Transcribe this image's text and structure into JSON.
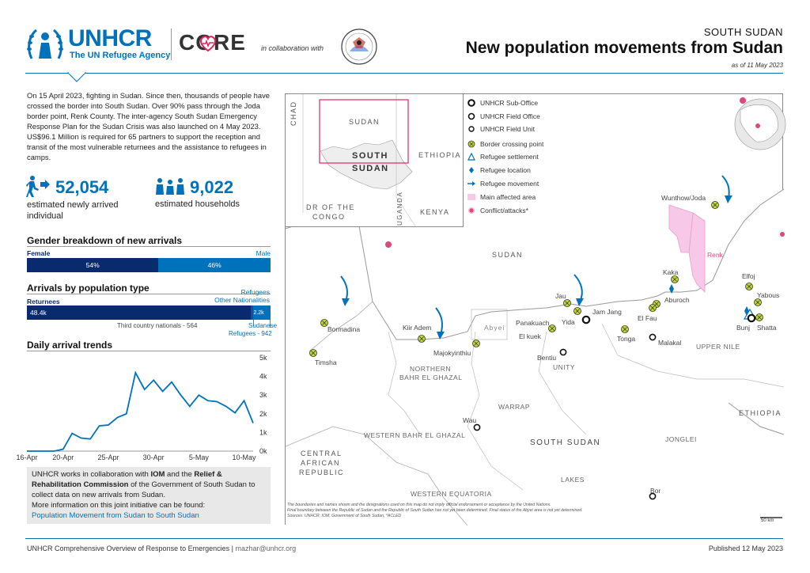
{
  "header": {
    "org_name": "UNHCR",
    "org_tagline": "The UN Refugee Agency",
    "core_label": "CORE",
    "collab_text": "in collaboration with",
    "country": "SOUTH SUDAN",
    "title": "New population movements from Sudan",
    "date": "as of 11 May 2023"
  },
  "intro": "On 15 April 2023, fighting in Sudan. Since then, thousands of people have crossed the border into South Sudan. Over 90% pass through the Joda border point, Renk County. The inter-agency South Sudan Emergency Response Plan for the Sudan Crisis was also launched on 4 May 2023. US$96.1 Million is required for 65 partners to support the reception and transit of the most vulnerable returnees and the assistance to refugees in camps.",
  "stats": {
    "arrivals_value": "52,054",
    "arrivals_label": "estimated newly arrived individual",
    "households_value": "9,022",
    "households_label": "estimated households"
  },
  "gender": {
    "title": "Gender breakdown of new arrivals",
    "female_label": "Female",
    "male_label": "Male",
    "female_pct": "54%",
    "male_pct": "46%",
    "female_share": 0.54
  },
  "pop_type": {
    "title": "Arrivals by population type",
    "returnees_label": "Returnees",
    "refugees_label": "Refugees",
    "other_nat_label": "Other Nationalities",
    "returnees_value": "48.4k",
    "refugees_value": "2.2k",
    "third_country_label": "Third country nationals - 564",
    "sudanese_label": "Sudanese",
    "sudanese_value_label": "Refugees - 942",
    "returnees_share": 0.93,
    "refugees_share": 0.042
  },
  "trends": {
    "title": "Daily arrival trends"
  },
  "chart_data": {
    "type": "line",
    "title": "Daily arrival trends",
    "x": [
      "16-Apr",
      "17-Apr",
      "18-Apr",
      "19-Apr",
      "20-Apr",
      "21-Apr",
      "22-Apr",
      "23-Apr",
      "24-Apr",
      "25-Apr",
      "26-Apr",
      "27-Apr",
      "28-Apr",
      "29-Apr",
      "30-Apr",
      "1-May",
      "2-May",
      "3-May",
      "4-May",
      "5-May",
      "6-May",
      "7-May",
      "8-May",
      "9-May",
      "10-May",
      "11-May"
    ],
    "y": [
      0,
      0,
      0,
      0,
      100,
      950,
      700,
      650,
      1350,
      1400,
      1800,
      2000,
      4200,
      3300,
      3800,
      3200,
      3700,
      3000,
      2400,
      3000,
      2700,
      2650,
      2400,
      2050,
      2700,
      1500
    ],
    "xticks": [
      "16-Apr",
      "20-Apr",
      "25-Apr",
      "30-Apr",
      "5-May",
      "10-May"
    ],
    "yticks": [
      "0k",
      "1k",
      "2k",
      "3k",
      "4k",
      "5k"
    ],
    "ylim": [
      0,
      5000
    ],
    "line_color": "#0072bc"
  },
  "collab_box": {
    "text1": "UNHCR works in collaboration with ",
    "iom": "IOM",
    "text2": " and the ",
    "rrc": "Relief & Rehabilitation Commission",
    "text3": " of the Government of South Sudan to collect data on new arrivals from Sudan.",
    "more": "More information on this joint initiative can be found:",
    "link": "Population Movement from Sudan to South Sudan"
  },
  "legend": {
    "sub_office": "UNHCR Sub-Office",
    "field_office": "UNHCR Field Office",
    "field_unit": "UNHCR Field Unit",
    "border_point": "Border crossing point",
    "settlement": "Refugee settlement",
    "location": "Refugee location",
    "movement": "Refugee movement",
    "affected": "Main affected area",
    "conflict": "Conflict/attacks*"
  },
  "inset": {
    "chad": "CHAD",
    "sudan": "SUDAN",
    "south_sudan_1": "SOUTH",
    "south_sudan_2": "SUDAN",
    "ethiopia": "ETHIOPIA",
    "drc_1": "DR OF THE",
    "drc_2": "CONGO",
    "uganda": "UGANDA",
    "kenya": "KENYA"
  },
  "map_places": {
    "wunthow": "Wunthow/Joda",
    "renk": "Renk",
    "elfoj": "Elfoj",
    "yabous": "Yabous",
    "kaka": "Kaka",
    "aburoch": "Aburoch",
    "elfau": "El Fau",
    "bunj": "Bunj",
    "shatta": "Shatta",
    "jau": "Jau",
    "jamjang": "Jam Jang",
    "yida": "Yida",
    "panakuach": "Panakuach",
    "tonga": "Tonga",
    "malakal": "Malakal",
    "kiiradem": "Kiir Adem",
    "majokyinthiu": "Majokyinthiu",
    "abyei": "Abyei",
    "elkuek": "El kuek",
    "bentiu": "Bentiu",
    "bormadina": "Bormadina",
    "timsha": "Timsha",
    "wau": "Wau",
    "bor": "Bor",
    "sudan": "SUDAN",
    "south_sudan": "SOUTH SUDAN",
    "ethiopia": "ETHIOPIA",
    "car_1": "CENTRAL",
    "car_2": "AFRICAN",
    "car_3": "REPUBLIC",
    "upper_nile": "UPPER NILE",
    "unity": "UNITY",
    "nbg_1": "NORTHERN",
    "nbg_2": "BAHR EL GHAZAL",
    "warrap": "WARRAP",
    "wbg": "WESTERN BAHR EL GHAZAL",
    "jonglei": "JONGLEI",
    "lakes": "LAKES",
    "weq": "WESTERN EQUATORIA",
    "disclaimer1": "The boundaries and names shown and the designations used on this map do not imply official endorsement or acceptance by the United Nations.",
    "disclaimer2": "Final boundary between the Republic of Sudan and the Republic of South Sudan has not yet been determined. Final status of the Abyei area is not yet determined.",
    "disclaimer3": "Sources: UNHCR, IOM, Government of South Sudan, *ACLED",
    "scale": "50 km"
  },
  "footer": {
    "left": "UNHCR Comprehensive Overview of Response to Emergencies",
    "email": "mazhar@unhcr.org",
    "right": "Published 12 May 2023"
  }
}
